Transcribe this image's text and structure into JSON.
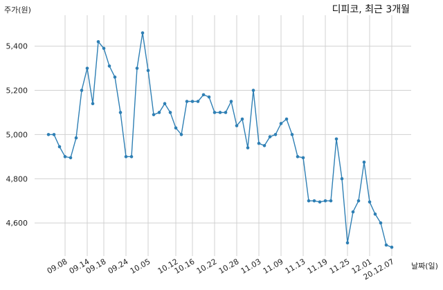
{
  "chart_data": {
    "type": "line",
    "title": "디피코, 최근 3개월",
    "ylabel": "주가(원)",
    "xlabel": "날짜(일)",
    "ylim": [
      4450,
      5540
    ],
    "yticks": [
      4600,
      4800,
      5000,
      5200,
      5400
    ],
    "ytick_labels": [
      "4,600",
      "4,800",
      "5,000",
      "5,200",
      "5,400"
    ],
    "xtick_labels": [
      "09.08",
      "09.14",
      "09.18",
      "09.24",
      "10.05",
      "10.12",
      "10.16",
      "10.22",
      "10.28",
      "11.03",
      "11.09",
      "11.13",
      "11.19",
      "11.25",
      "12.01",
      "20.12.07"
    ],
    "xtick_indices": [
      3,
      7,
      10,
      14,
      18,
      23,
      26,
      30,
      34,
      38,
      42,
      46,
      50,
      54,
      58,
      62
    ],
    "grid": true,
    "series": [
      {
        "values": [
          5000,
          5000,
          4945,
          4900,
          4895,
          4985,
          5200,
          5300,
          5140,
          5420,
          5390,
          5310,
          5260,
          5100,
          4900,
          4900,
          5300,
          5460,
          5290,
          5090,
          5100,
          5140,
          5100,
          5030,
          5000,
          5150,
          5150,
          5150,
          5180,
          5170,
          5100,
          5100,
          5100,
          5150,
          5040,
          5070,
          4940,
          5200,
          4960,
          4950,
          4990,
          5000,
          5050,
          5070,
          5000,
          4900,
          4895,
          4700,
          4700,
          4695,
          4700,
          4700,
          4980,
          4800,
          4510,
          4650,
          4700,
          4875,
          4695,
          4640,
          4600,
          4500,
          4490
        ]
      }
    ]
  }
}
